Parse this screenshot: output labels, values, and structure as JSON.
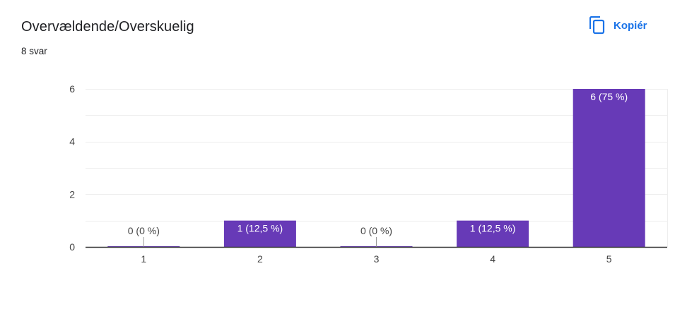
{
  "header": {
    "title": "Overvældende/Overskuelig",
    "response_count": "8 svar"
  },
  "actions": {
    "copy_label": "Kopiér",
    "copy_icon": "copy-icon"
  },
  "colors": {
    "bar": "#673ab7",
    "accent": "#1a73e8",
    "text": "#202124",
    "axis_text": "#444444",
    "grid": "#eeeeee",
    "axis_line": "#333333"
  },
  "chart_data": {
    "type": "bar",
    "categories": [
      "1",
      "2",
      "3",
      "4",
      "5"
    ],
    "values": [
      0,
      1,
      0,
      1,
      6
    ],
    "data_labels": [
      "0 (0 %)",
      "1 (12,5 %)",
      "0 (0 %)",
      "1 (12,5 %)",
      "6 (75 %)"
    ],
    "title": "Overvældende/Overskuelig",
    "xlabel": "",
    "ylabel": "",
    "ylim": [
      0,
      6
    ],
    "yticks": [
      "0",
      "2",
      "4",
      "6"
    ],
    "grid": true,
    "legend": "none"
  }
}
